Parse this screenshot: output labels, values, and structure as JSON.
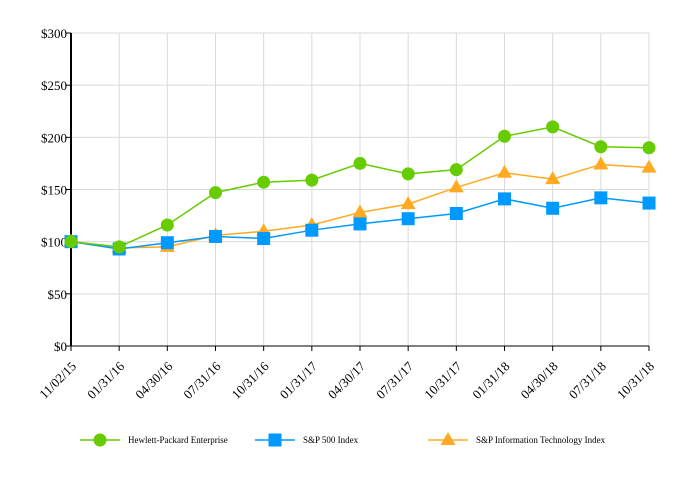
{
  "chart_data": {
    "type": "line",
    "categories": [
      "11/02/15",
      "01/31/16",
      "04/30/16",
      "07/31/16",
      "10/31/16",
      "01/31/17",
      "04/30/17",
      "07/31/17",
      "10/31/17",
      "01/31/18",
      "04/30/18",
      "07/31/18",
      "10/31/18"
    ],
    "yticks": [
      "$0",
      "$50",
      "$100",
      "$150",
      "$200",
      "$250",
      "$300"
    ],
    "ylim": [
      0,
      300
    ],
    "grid": true,
    "legend_position": "bottom",
    "series": [
      {
        "name": "Hewlett-Packard Enterprise",
        "color": "#66cc00",
        "marker": "circle",
        "values": [
          100,
          95,
          116,
          147,
          157,
          159,
          175,
          165,
          169,
          201,
          210,
          191,
          190
        ]
      },
      {
        "name": "S&P 500 Index",
        "color": "#0099ff",
        "marker": "square",
        "values": [
          100,
          93,
          99,
          105,
          103,
          111,
          117,
          122,
          127,
          141,
          132,
          142,
          137
        ]
      },
      {
        "name": "S&P Information Technology Index",
        "color": "#ffaa22",
        "marker": "triangle",
        "values": [
          100,
          94,
          95,
          106,
          110,
          116,
          128,
          136,
          152,
          166,
          160,
          174,
          171
        ]
      }
    ]
  }
}
